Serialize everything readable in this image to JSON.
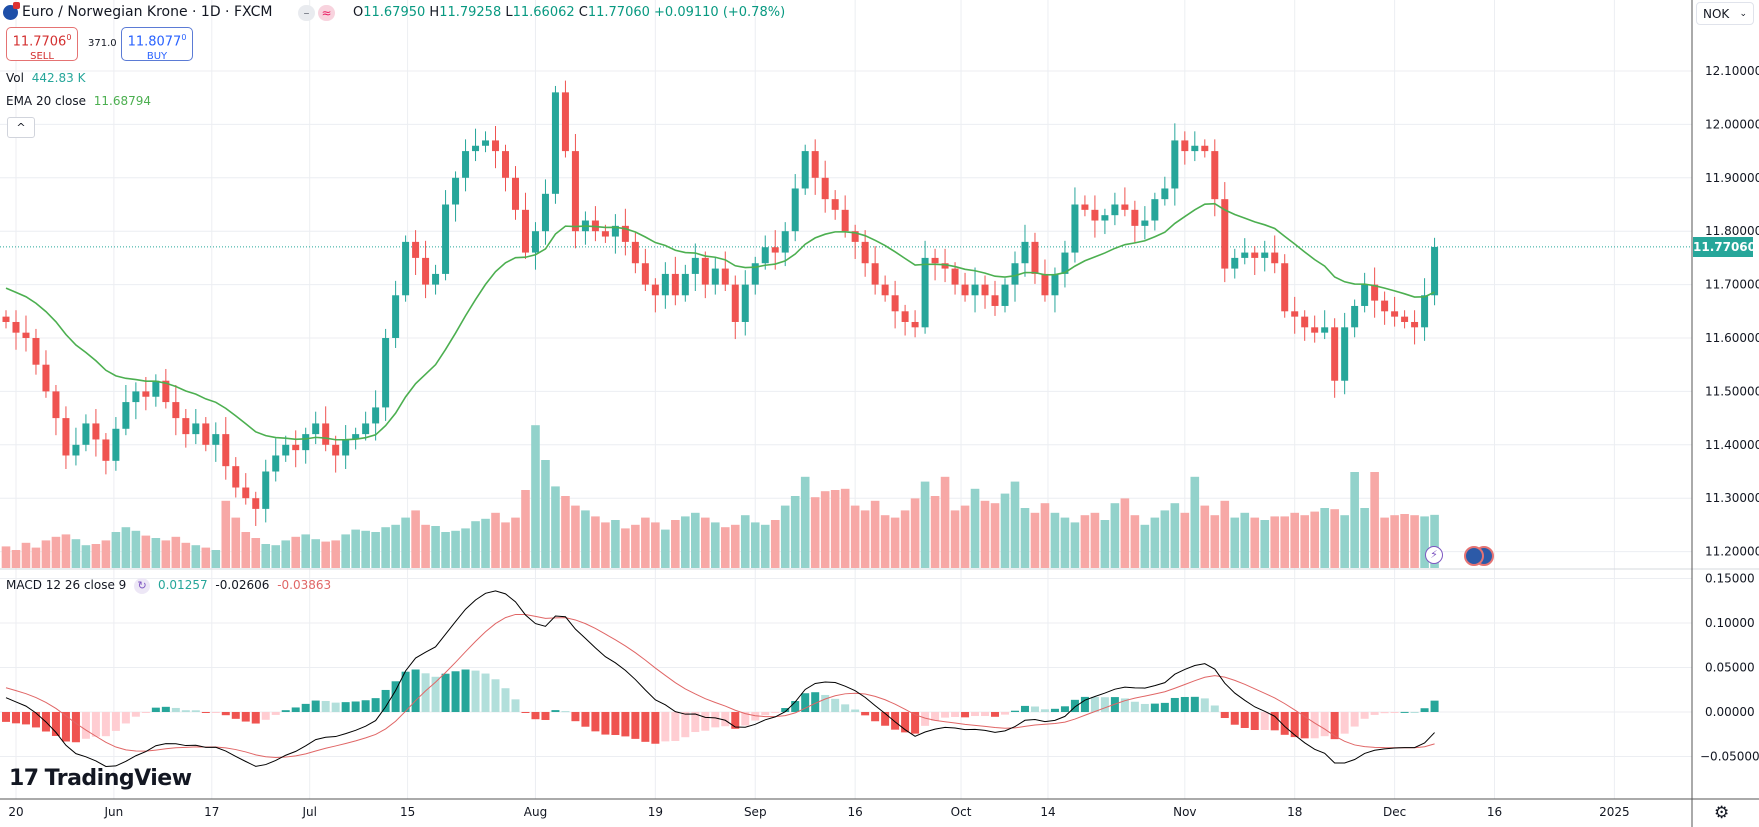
{
  "header": {
    "symbol_title": "Euro / Norwegian Krone · 1D · FXCM",
    "badge_minus": "–",
    "badge_approx": "≈",
    "ohlc": {
      "o_label": "O",
      "o": "11.67950",
      "h_label": "H",
      "h": "11.79258",
      "l_label": "L",
      "l": "11.66062",
      "c_label": "C",
      "c": "11.77060",
      "change": "+0.09110 (+0.78%)"
    }
  },
  "trade": {
    "sell_price": "11.7706",
    "sell_sup": "0",
    "sell_label": "SELL",
    "spread": "371.0",
    "buy_price": "11.8077",
    "buy_sup": "0",
    "buy_label": "BUY"
  },
  "indicators": {
    "vol_label": "Vol",
    "vol_value": "442.83 K",
    "ema_label": "EMA 20 close",
    "ema_value": "11.68794",
    "collapse_icon": "^",
    "macd_label": "MACD 12 26 close 9",
    "macd_hist": "0.01257",
    "macd_line": "-0.02606",
    "macd_signal": "-0.03863"
  },
  "currency_select": "NOK",
  "current_price": "11.77060",
  "brand": "TradingView",
  "colors": {
    "up": "#26a69a",
    "down": "#ef5350",
    "vol_up": "#92d2cb",
    "vol_down": "#f7a8a6",
    "ema": "#4caf50",
    "macd": "#000000",
    "signal": "#e06666",
    "hist_up_strong": "#26a69a",
    "hist_up_weak": "#b2dfdb",
    "hist_dn_strong": "#ef5350",
    "hist_dn_weak": "#ffcdd2",
    "grid": "#eceef2"
  },
  "chart_data": {
    "type": "candlestick",
    "price_axis": {
      "ticks": [
        "12.10000",
        "12.00000",
        "11.90000",
        "11.80000",
        "11.70000",
        "11.60000",
        "11.50000",
        "11.40000",
        "11.30000",
        "11.20000"
      ],
      "range": [
        11.2,
        12.1
      ]
    },
    "macd_axis": {
      "ticks": [
        "0.15000",
        "0.10000",
        "0.05000",
        "0.00000",
        "−0.05000"
      ],
      "range": [
        -0.05,
        0.15
      ]
    },
    "time_axis": [
      {
        "label": "20",
        "bar": 1
      },
      {
        "label": "Jun",
        "bar": 10.8
      },
      {
        "label": "17",
        "bar": 20.6
      },
      {
        "label": "Jul",
        "bar": 30.4
      },
      {
        "label": "15",
        "bar": 40.2
      },
      {
        "label": "Aug",
        "bar": 53
      },
      {
        "label": "19",
        "bar": 65
      },
      {
        "label": "Sep",
        "bar": 75
      },
      {
        "label": "16",
        "bar": 85
      },
      {
        "label": "Oct",
        "bar": 95.6
      },
      {
        "label": "14",
        "bar": 104.3
      },
      {
        "label": "Nov",
        "bar": 118
      },
      {
        "label": "18",
        "bar": 129
      },
      {
        "label": "Dec",
        "bar": 139
      },
      {
        "label": "16",
        "bar": 149
      },
      {
        "label": "2025",
        "bar": 161
      }
    ],
    "first_open": 11.64,
    "closes": [
      11.63,
      11.61,
      11.6,
      11.55,
      11.5,
      11.45,
      11.38,
      11.4,
      11.44,
      11.41,
      11.37,
      11.43,
      11.48,
      11.5,
      11.49,
      11.52,
      11.48,
      11.45,
      11.42,
      11.44,
      11.4,
      11.42,
      11.36,
      11.32,
      11.3,
      11.28,
      11.35,
      11.38,
      11.4,
      11.39,
      11.42,
      11.44,
      11.4,
      11.38,
      11.41,
      11.42,
      11.44,
      11.47,
      11.6,
      11.68,
      11.78,
      11.75,
      11.7,
      11.72,
      11.85,
      11.9,
      11.95,
      11.96,
      11.97,
      11.95,
      11.9,
      11.84,
      11.76,
      11.8,
      11.87,
      12.06,
      11.95,
      11.8,
      11.82,
      11.8,
      11.79,
      11.81,
      11.78,
      11.74,
      11.7,
      11.68,
      11.72,
      11.68,
      11.72,
      11.75,
      11.7,
      11.73,
      11.7,
      11.63,
      11.7,
      11.74,
      11.77,
      11.76,
      11.8,
      11.88,
      11.95,
      11.9,
      11.86,
      11.84,
      11.8,
      11.78,
      11.74,
      11.7,
      11.68,
      11.65,
      11.63,
      11.62,
      11.75,
      11.74,
      11.73,
      11.7,
      11.68,
      11.7,
      11.68,
      11.66,
      11.7,
      11.74,
      11.78,
      11.72,
      11.68,
      11.72,
      11.76,
      11.85,
      11.84,
      11.82,
      11.83,
      11.85,
      11.84,
      11.81,
      11.82,
      11.86,
      11.88,
      11.97,
      11.95,
      11.96,
      11.95,
      11.86,
      11.73,
      11.75,
      11.76,
      11.75,
      11.76,
      11.74,
      11.65,
      11.64,
      11.62,
      11.61,
      11.62,
      11.52,
      11.62,
      11.66,
      11.7,
      11.67,
      11.65,
      11.64,
      11.63,
      11.62,
      11.68,
      11.7706
    ],
    "volumes_k": [
      180,
      150,
      210,
      170,
      230,
      260,
      280,
      240,
      190,
      200,
      230,
      300,
      340,
      310,
      270,
      250,
      230,
      260,
      210,
      190,
      170,
      150,
      560,
      420,
      300,
      250,
      200,
      190,
      230,
      260,
      280,
      240,
      220,
      230,
      280,
      320,
      310,
      300,
      340,
      360,
      420,
      480,
      360,
      350,
      300,
      310,
      330,
      390,
      410,
      460,
      380,
      420,
      650,
      1190,
      900,
      680,
      600,
      520,
      480,
      430,
      380,
      400,
      330,
      360,
      420,
      380,
      320,
      400,
      430,
      460,
      420,
      380,
      340,
      360,
      440,
      380,
      360,
      400,
      520,
      600,
      760,
      590,
      640,
      650,
      660,
      520,
      480,
      560,
      440,
      420,
      480,
      580,
      720,
      600,
      760,
      480,
      520,
      660,
      560,
      540,
      620,
      720,
      500,
      460,
      540,
      460,
      420,
      380,
      440,
      460,
      400,
      540,
      580,
      440,
      360,
      420,
      480,
      540,
      460,
      760,
      520,
      440,
      560,
      420,
      460,
      420,
      400,
      430,
      430,
      460,
      440,
      470,
      500,
      490,
      440,
      800,
      500,
      800,
      420,
      440,
      450,
      440,
      430,
      443
    ],
    "ema_period": 20,
    "ema_seed": 11.7,
    "macd": {
      "fast": 12,
      "slow": 26,
      "signal": 9,
      "fast_seed": 11.66,
      "slow_seed": 11.64,
      "signal_seed": 0.03
    }
  }
}
